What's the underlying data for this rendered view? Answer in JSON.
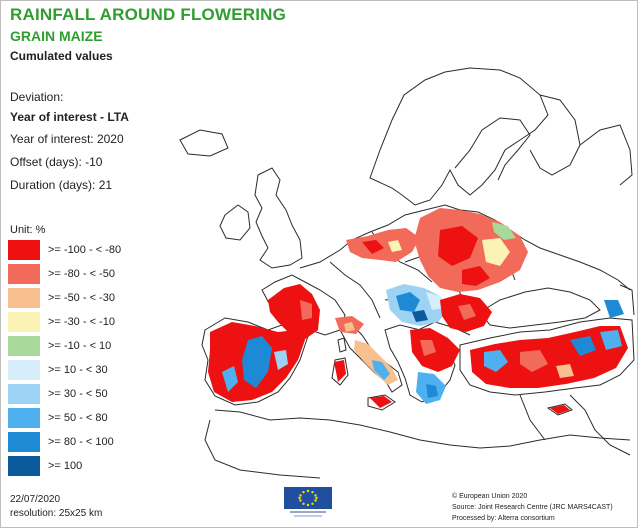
{
  "title": "RAINFALL AROUND FLOWERING",
  "subtitle": "GRAIN MAIZE",
  "subtitle2": "Cumulated values",
  "deviation_label": "Deviation:",
  "deviation_type": "Year of interest - LTA",
  "year_line": "Year of interest: 2020",
  "offset_line": "Offset (days): -10",
  "duration_line": "Duration (days): 21",
  "unit_label": "Unit: %",
  "legend": [
    {
      "label": ">= -100 - < -80",
      "color": "#ee1111"
    },
    {
      "label": ">= -80 - < -50",
      "color": "#f26a5a"
    },
    {
      "label": ">= -50 - < -30",
      "color": "#f7c08e"
    },
    {
      "label": ">= -30 - < -10",
      "color": "#fbf3b4"
    },
    {
      "label": ">= -10 - < 10",
      "color": "#a8d99a"
    },
    {
      "label": ">= 10 - < 30",
      "color": "#d7edf9"
    },
    {
      "label": ">= 30 - < 50",
      "color": "#9dd2f4"
    },
    {
      "label": ">= 50 - < 80",
      "color": "#4eb0ee"
    },
    {
      "label": ">= 80 - < 100",
      "color": "#1e8ad6"
    },
    {
      "label": ">= 100",
      "color": "#0b5a9c"
    }
  ],
  "date": "22/07/2020",
  "resolution": "resolution: 25x25 km",
  "credits": [
    "© European Union 2020",
    "Source: Joint Research Centre (JRC MARS4CAST)",
    "Processed by: Alterra consortium"
  ],
  "colors": {
    "title_green": "#2f9e2f",
    "land_outline": "#2b2b2b",
    "eu_blue": "#1f4f9e",
    "eu_star": "#ffdd00"
  }
}
